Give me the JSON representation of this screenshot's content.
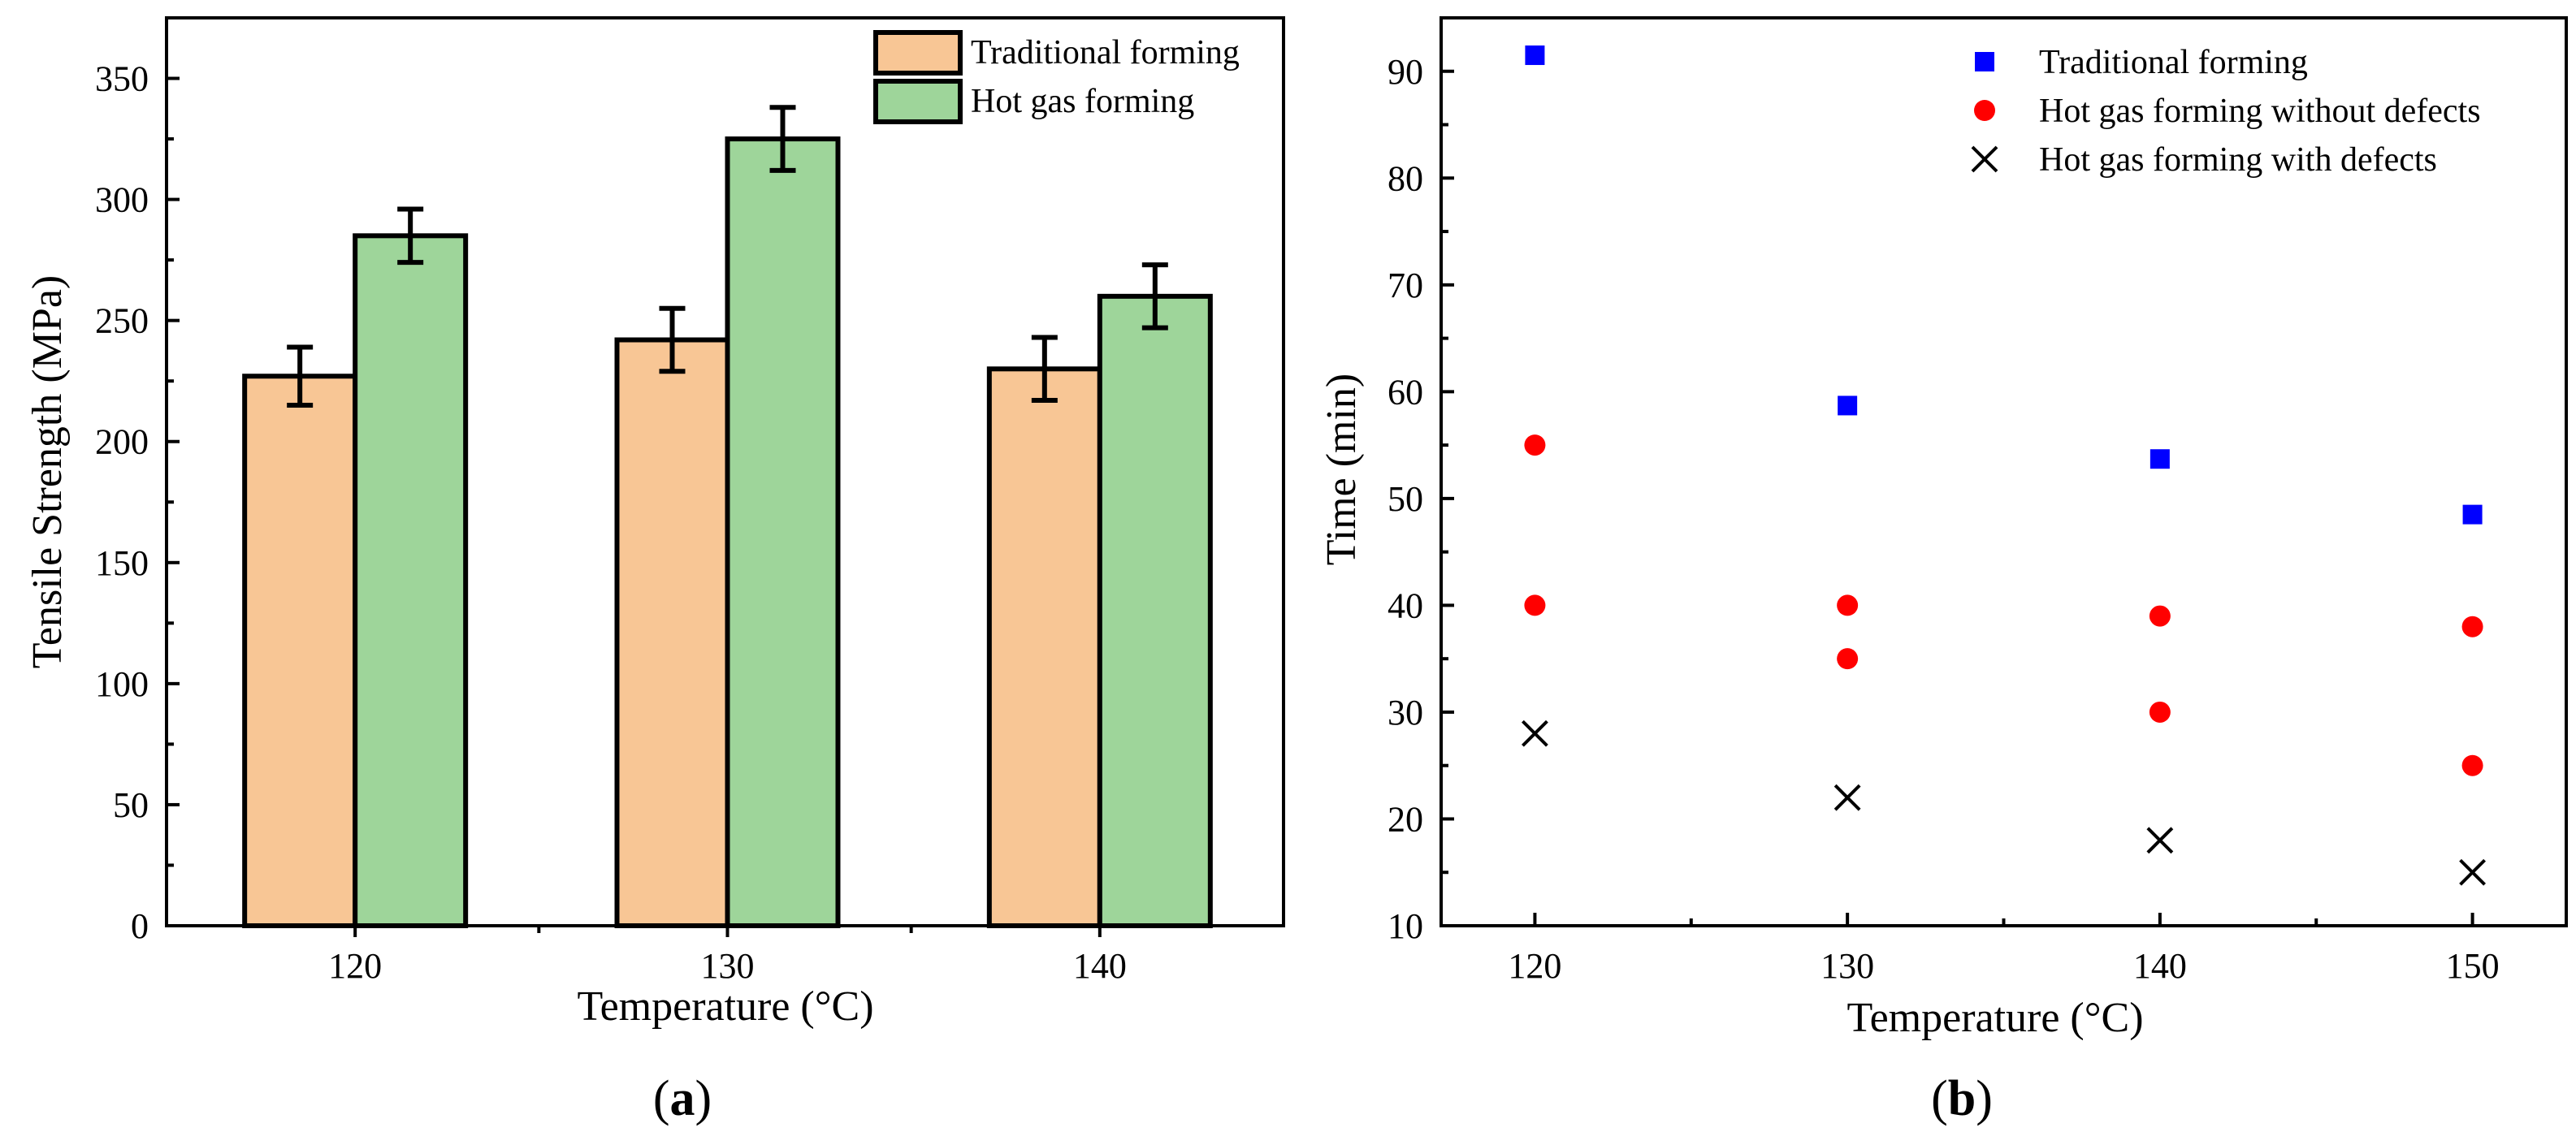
{
  "chart_data": [
    {
      "type": "bar",
      "panel_label_open": "(",
      "panel_label_letter": "a",
      "panel_label_close": ")",
      "title": "",
      "xlabel": "Temperature (°C)",
      "ylabel": "Tensile Strength (MPa)",
      "categories": [
        "120",
        "130",
        "140"
      ],
      "ylim": [
        0,
        375
      ],
      "yticks": [
        0,
        50,
        100,
        150,
        200,
        250,
        300,
        350
      ],
      "series": [
        {
          "name": "Traditional forming",
          "color": "#f8c695",
          "values": [
            227,
            242,
            230
          ],
          "errors": [
            12,
            13,
            13
          ]
        },
        {
          "name": "Hot gas forming",
          "color": "#9ed59a",
          "values": [
            285,
            325,
            260
          ],
          "errors": [
            11,
            13,
            13
          ]
        }
      ],
      "legend_position": "top-right"
    },
    {
      "type": "scatter",
      "panel_label_open": "(",
      "panel_label_letter": "b",
      "panel_label_close": ")",
      "title": "",
      "xlabel": "Temperature (°C)",
      "ylabel": "Time (min)",
      "xlim": [
        117,
        153
      ],
      "ylim": [
        10,
        95
      ],
      "xticks": [
        120,
        130,
        140,
        150
      ],
      "yticks": [
        10,
        20,
        30,
        40,
        50,
        60,
        70,
        80,
        90
      ],
      "series": [
        {
          "name": "Traditional forming",
          "marker": "square",
          "color": "#0000ff",
          "x": [
            120,
            130,
            140,
            150
          ],
          "y": [
            91.5,
            58.7,
            53.7,
            48.5
          ]
        },
        {
          "name": "Hot gas forming without defects",
          "marker": "circle",
          "color": "#ff0000",
          "x": [
            120,
            120,
            130,
            130,
            140,
            140,
            150,
            150
          ],
          "y": [
            55,
            40,
            40,
            35,
            39,
            30,
            38,
            25
          ]
        },
        {
          "name": "Hot gas forming with defects",
          "marker": "x",
          "color": "#000000",
          "x": [
            120,
            130,
            140,
            150
          ],
          "y": [
            28,
            22,
            18,
            15
          ]
        }
      ],
      "legend_position": "top-right"
    }
  ]
}
